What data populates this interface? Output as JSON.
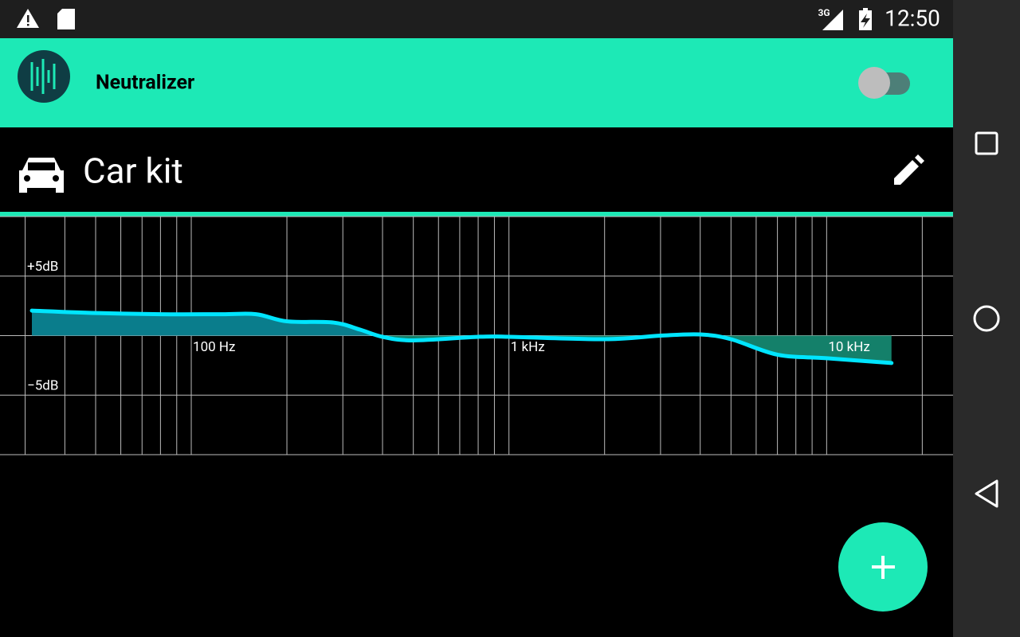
{
  "status_bar": {
    "network": "3G",
    "time": "12:50"
  },
  "app_bar": {
    "title": "Neutralizer"
  },
  "profile": {
    "name": "Car kit"
  },
  "chart_data": {
    "type": "area",
    "xscale": "log",
    "xlim": [
      25,
      25000
    ],
    "ylim": [
      -10,
      10
    ],
    "xticks": [
      {
        "value": 100,
        "label": "100 Hz"
      },
      {
        "value": 1000,
        "label": "1 kHz"
      },
      {
        "value": 10000,
        "label": "10 kHz"
      }
    ],
    "yticks": [
      {
        "value": 5,
        "label": "+5dB"
      },
      {
        "value": -5,
        "label": "−5dB"
      }
    ],
    "xgrid": [
      30,
      40,
      50,
      60,
      70,
      80,
      90,
      100,
      200,
      300,
      400,
      500,
      600,
      700,
      800,
      900,
      1000,
      2000,
      3000,
      4000,
      5000,
      6000,
      7000,
      8000,
      9000,
      10000,
      20000
    ],
    "ygrid": [
      -10,
      -5,
      0,
      5,
      10
    ],
    "grid": true,
    "x": [
      31.5,
      50,
      80,
      125,
      160,
      200,
      280,
      340,
      400,
      500,
      800,
      1000,
      2000,
      3000,
      4000,
      5000,
      7000,
      10000,
      16000
    ],
    "values": [
      2.1,
      1.9,
      1.8,
      1.8,
      1.8,
      1.2,
      1.1,
      0.5,
      -0.1,
      -0.4,
      -0.1,
      -0.1,
      -0.3,
      0.0,
      0.1,
      -0.3,
      -1.6,
      -1.9,
      -2.3
    ],
    "color": "#00e5ff",
    "fill_color": "#0a7d8c",
    "fill_color_negative": "#14806a"
  }
}
